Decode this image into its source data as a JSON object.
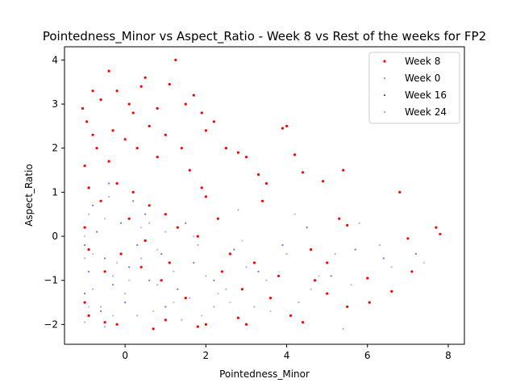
{
  "chart_data": {
    "type": "scatter",
    "title": "Pointedness_Minor vs Aspect_Ratio - Week 8 vs Rest of the weeks for FP2",
    "xlabel": "Pointedness_Minor",
    "ylabel": "Aspect_Ratio",
    "xlim": [
      -1.5,
      8.4
    ],
    "ylim": [
      -2.45,
      4.3
    ],
    "xticks": [
      0,
      2,
      4,
      6,
      8
    ],
    "yticks": [
      -2,
      -1,
      0,
      1,
      2,
      3,
      4
    ],
    "grid": false,
    "legend_position": "top-right",
    "series": [
      {
        "name": "Week 8",
        "color": "#ff0000",
        "marker": "filled-dot",
        "points": [
          [
            -1.05,
            2.9
          ],
          [
            -0.95,
            2.6
          ],
          [
            -0.8,
            3.3
          ],
          [
            -0.6,
            3.1
          ],
          [
            -0.4,
            3.75
          ],
          [
            -0.2,
            3.3
          ],
          [
            0.1,
            3.0
          ],
          [
            0.2,
            2.8
          ],
          [
            0.4,
            3.4
          ],
          [
            0.5,
            3.6
          ],
          [
            0.8,
            2.9
          ],
          [
            1.1,
            3.45
          ],
          [
            1.25,
            4.0
          ],
          [
            1.5,
            3.0
          ],
          [
            1.7,
            3.2
          ],
          [
            1.9,
            2.8
          ],
          [
            2.0,
            2.4
          ],
          [
            2.2,
            2.6
          ],
          [
            2.5,
            2.0
          ],
          [
            2.8,
            1.9
          ],
          [
            3.0,
            1.8
          ],
          [
            3.3,
            1.4
          ],
          [
            3.5,
            1.2
          ],
          [
            3.9,
            2.45
          ],
          [
            4.0,
            2.5
          ],
          [
            4.2,
            1.85
          ],
          [
            4.4,
            1.45
          ],
          [
            4.9,
            1.25
          ],
          [
            5.4,
            1.5
          ],
          [
            5.3,
            0.4
          ],
          [
            5.5,
            0.25
          ],
          [
            6.8,
            1.0
          ],
          [
            7.0,
            -0.05
          ],
          [
            7.7,
            0.2
          ],
          [
            7.8,
            0.05
          ],
          [
            6.0,
            -0.95
          ],
          [
            6.6,
            -1.25
          ],
          [
            7.1,
            -0.8
          ],
          [
            6.05,
            -1.5
          ],
          [
            5.5,
            -1.6
          ],
          [
            5.0,
            -1.3
          ],
          [
            4.4,
            -1.95
          ],
          [
            4.1,
            -1.8
          ],
          [
            3.6,
            -1.4
          ],
          [
            3.0,
            -2.0
          ],
          [
            2.8,
            -1.85
          ],
          [
            2.0,
            -2.0
          ],
          [
            1.8,
            -2.05
          ],
          [
            1.0,
            -1.9
          ],
          [
            0.7,
            -2.1
          ],
          [
            -0.2,
            -2.0
          ],
          [
            -0.5,
            -1.95
          ],
          [
            -0.9,
            -1.8
          ],
          [
            -1.0,
            -1.5
          ],
          [
            4.6,
            -0.3
          ],
          [
            5.0,
            -0.6
          ],
          [
            4.7,
            -1.0
          ],
          [
            3.8,
            -0.9
          ],
          [
            3.2,
            -0.6
          ],
          [
            2.6,
            -0.4
          ],
          [
            2.3,
            0.4
          ],
          [
            2.0,
            0.9
          ],
          [
            1.6,
            1.5
          ],
          [
            1.4,
            2.0
          ],
          [
            1.0,
            2.3
          ],
          [
            0.6,
            2.5
          ],
          [
            0.3,
            2.0
          ],
          [
            0.0,
            2.2
          ],
          [
            -0.3,
            2.4
          ],
          [
            -0.7,
            2.0
          ],
          [
            -1.0,
            1.6
          ],
          [
            -0.9,
            1.1
          ],
          [
            -0.6,
            0.8
          ],
          [
            -0.2,
            1.2
          ],
          [
            0.2,
            1.0
          ],
          [
            0.6,
            0.7
          ],
          [
            1.0,
            0.5
          ],
          [
            1.3,
            0.2
          ],
          [
            1.8,
            0.0
          ],
          [
            2.4,
            -0.8
          ],
          [
            2.9,
            -1.2
          ],
          [
            1.5,
            -1.4
          ],
          [
            0.9,
            -1.0
          ],
          [
            0.4,
            -0.7
          ],
          [
            -0.1,
            -0.4
          ],
          [
            -0.5,
            -0.8
          ],
          [
            -0.9,
            -0.3
          ],
          [
            -1.0,
            0.2
          ],
          [
            0.1,
            0.4
          ],
          [
            0.5,
            -0.1
          ],
          [
            1.1,
            -0.6
          ],
          [
            -0.4,
            1.7
          ],
          [
            -0.8,
            2.3
          ],
          [
            0.8,
            1.8
          ],
          [
            1.9,
            1.1
          ],
          [
            3.4,
            0.8
          ]
        ]
      },
      {
        "name": "Week 0",
        "color": "#8c8cff",
        "marker": "small-dot",
        "points": [
          [
            -1.0,
            -0.5
          ],
          [
            -0.8,
            -1.2
          ],
          [
            -0.6,
            -1.6
          ],
          [
            -0.3,
            -0.9
          ],
          [
            0.0,
            -1.3
          ],
          [
            0.4,
            -0.5
          ],
          [
            0.8,
            -1.1
          ],
          [
            1.2,
            -0.8
          ],
          [
            1.6,
            -1.4
          ],
          [
            2.0,
            -0.9
          ],
          [
            2.5,
            -1.2
          ],
          [
            3.0,
            -0.7
          ],
          [
            3.5,
            -1.0
          ],
          [
            4.0,
            -0.4
          ],
          [
            4.6,
            -1.2
          ],
          [
            5.2,
            -0.4
          ],
          [
            5.8,
            0.3
          ],
          [
            6.3,
            -0.2
          ],
          [
            -1.0,
            -1.95
          ],
          [
            -0.5,
            -2.05
          ],
          [
            0.3,
            -1.8
          ],
          [
            1.4,
            -1.9
          ],
          [
            2.2,
            -1.6
          ],
          [
            -0.9,
            0.5
          ],
          [
            -0.4,
            0.9
          ],
          [
            0.6,
            0.3
          ],
          [
            1.0,
            0.1
          ],
          [
            1.8,
            -0.2
          ],
          [
            2.8,
            0.6
          ],
          [
            3.2,
            -1.6
          ],
          [
            5.4,
            -2.1
          ],
          [
            4.3,
            -1.5
          ]
        ]
      },
      {
        "name": "Week 16",
        "color": "#3c3cff",
        "marker": "small-dot",
        "points": [
          [
            -1.0,
            -0.2
          ],
          [
            -0.9,
            -0.8
          ],
          [
            -0.7,
            0.1
          ],
          [
            -0.5,
            -0.5
          ],
          [
            -0.3,
            -1.1
          ],
          [
            -0.1,
            0.3
          ],
          [
            0.1,
            -0.7
          ],
          [
            0.3,
            -0.2
          ],
          [
            0.6,
            -1.0
          ],
          [
            0.9,
            -0.4
          ],
          [
            1.3,
            -1.2
          ],
          [
            1.7,
            -0.6
          ],
          [
            2.2,
            -1.0
          ],
          [
            2.7,
            -0.3
          ],
          [
            3.3,
            -0.8
          ],
          [
            3.9,
            -0.2
          ],
          [
            4.5,
            0.2
          ],
          [
            5.1,
            -0.9
          ],
          [
            5.7,
            -0.3
          ],
          [
            6.4,
            -0.5
          ],
          [
            7.2,
            -0.4
          ],
          [
            -0.8,
            0.7
          ],
          [
            -0.4,
            1.2
          ],
          [
            0.2,
            0.8
          ],
          [
            -1.0,
            -1.3
          ],
          [
            -0.6,
            -1.7
          ],
          [
            0.0,
            -1.5
          ],
          [
            0.5,
            0.5
          ],
          [
            1.0,
            -1.6
          ],
          [
            1.5,
            0.3
          ]
        ]
      },
      {
        "name": "Week 24",
        "color": "#a0a0ff",
        "marker": "small-dot",
        "points": [
          [
            -1.0,
            0.0
          ],
          [
            -0.8,
            -0.4
          ],
          [
            -0.5,
            0.4
          ],
          [
            -0.2,
            -0.6
          ],
          [
            0.1,
            -1.0
          ],
          [
            0.4,
            0.2
          ],
          [
            0.8,
            -0.3
          ],
          [
            1.2,
            -1.5
          ],
          [
            1.7,
            0.0
          ],
          [
            2.3,
            -1.3
          ],
          [
            2.9,
            -0.1
          ],
          [
            3.6,
            -1.7
          ],
          [
            4.2,
            0.5
          ],
          [
            4.8,
            -0.9
          ],
          [
            5.6,
            -1.1
          ],
          [
            6.6,
            -0.7
          ],
          [
            7.4,
            -0.6
          ],
          [
            -0.9,
            -1.6
          ],
          [
            -0.3,
            -1.8
          ],
          [
            0.7,
            -1.7
          ],
          [
            1.9,
            -1.8
          ],
          [
            2.6,
            -1.5
          ]
        ]
      }
    ]
  }
}
